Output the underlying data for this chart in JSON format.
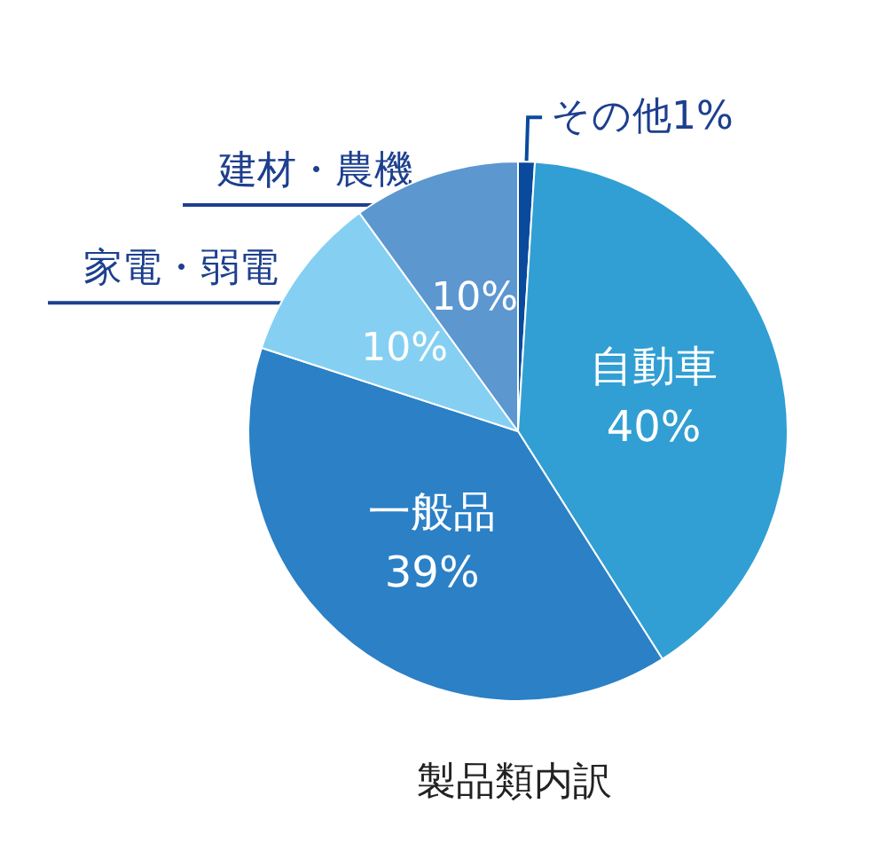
{
  "chart_data": {
    "type": "pie",
    "title": "製品類内訳",
    "categories": [
      "その他",
      "自動車",
      "一般品",
      "家電・弱電",
      "建材・農機"
    ],
    "values": [
      1,
      40,
      39,
      10,
      10
    ],
    "colors": [
      "#0a4a9c",
      "#319fd3",
      "#2b80c6",
      "#85d0f2",
      "#5c97d0"
    ],
    "value_labels": [
      "1%",
      "40%",
      "39%",
      "10%",
      "10%"
    ]
  }
}
